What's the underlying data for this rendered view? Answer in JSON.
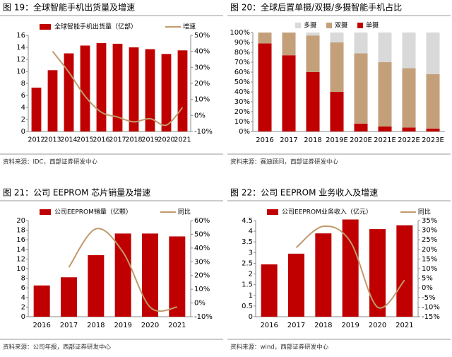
{
  "chart_data": [
    {
      "type": "combo",
      "title": "图 19：全球智能手机出货量及增速",
      "source": "资料来源：IDC，西部证券研发中心",
      "categories": [
        "2012",
        "2013",
        "2014",
        "2015",
        "2016",
        "2017",
        "2018",
        "2019",
        "2020",
        "2021"
      ],
      "series": [
        {
          "name": "全球智能手机出货量（亿部）",
          "type": "bar",
          "color": "#c00000",
          "values": [
            7.3,
            10.2,
            13.0,
            14.3,
            14.7,
            14.6,
            14.0,
            13.7,
            12.9,
            13.5
          ]
        },
        {
          "name": "增速",
          "type": "line",
          "axis": "y2",
          "color": "#c09a6b",
          "values": [
            null,
            40,
            27,
            12,
            2,
            -1,
            -4,
            -2,
            -6,
            5
          ]
        }
      ],
      "ylim": [
        0,
        16
      ],
      "yticks": [
        0,
        2,
        4,
        6,
        8,
        10,
        12,
        14,
        16
      ],
      "y2lim": [
        -10,
        50
      ],
      "y2ticks": [
        {
          "value": -10,
          "label": "-10%"
        },
        {
          "value": 0,
          "label": "0%"
        },
        {
          "value": 10,
          "label": "10%"
        },
        {
          "value": 20,
          "label": "20%"
        },
        {
          "value": 30,
          "label": "30%"
        },
        {
          "value": 40,
          "label": "40%"
        },
        {
          "value": 50,
          "label": "50%"
        }
      ]
    },
    {
      "type": "stacked_bar",
      "title": "图 20：全球后置单摄/双摄/多摄智能手机占比",
      "source": "资料来源：赛迪顾问，西部证券研发中心",
      "categories": [
        "2016",
        "2017",
        "2018",
        "2019E",
        "2020E",
        "2021E",
        "2022E",
        "2023E"
      ],
      "series": [
        {
          "name": "单摄",
          "color": "#c00000",
          "values": [
            89,
            77,
            60,
            40,
            8,
            5,
            4,
            3
          ]
        },
        {
          "name": "双摄",
          "color": "#c4a07a",
          "values": [
            11,
            23,
            37,
            50,
            71,
            65,
            60,
            55
          ]
        },
        {
          "name": "多摄",
          "color": "#d9d9d9",
          "values": [
            0,
            0,
            3,
            10,
            21,
            30,
            36,
            42
          ]
        }
      ],
      "ylim": [
        0,
        100
      ],
      "yticks": [
        {
          "value": 0,
          "label": "0%"
        },
        {
          "value": 10,
          "label": "10%"
        },
        {
          "value": 20,
          "label": "20%"
        },
        {
          "value": 30,
          "label": "30%"
        },
        {
          "value": 40,
          "label": "40%"
        },
        {
          "value": 50,
          "label": "50%"
        },
        {
          "value": 60,
          "label": "60%"
        },
        {
          "value": 70,
          "label": "70%"
        },
        {
          "value": 80,
          "label": "80%"
        },
        {
          "value": 90,
          "label": "90%"
        },
        {
          "value": 100,
          "label": "100%"
        }
      ]
    },
    {
      "type": "combo",
      "title": "图 21：公司 EEPROM 芯片销量及增速",
      "source": "资料来源：公司年报，西部证券研发中心",
      "categories": [
        "2016",
        "2017",
        "2018",
        "2019",
        "2020",
        "2021"
      ],
      "series": [
        {
          "name": "公司EEPROM销量（亿颗）",
          "type": "bar",
          "color": "#c00000",
          "values": [
            6.5,
            8.2,
            12.8,
            17.3,
            17.3,
            16.7
          ]
        },
        {
          "name": "同比",
          "type": "line",
          "axis": "y2",
          "color": "#c09a6b",
          "values": [
            null,
            26,
            54,
            37,
            -3,
            -3
          ]
        }
      ],
      "ylim": [
        0,
        20
      ],
      "yticks": [
        0,
        2,
        4,
        6,
        8,
        10,
        12,
        14,
        16,
        18,
        20
      ],
      "y2lim": [
        -10,
        60
      ],
      "y2ticks": [
        {
          "value": -10,
          "label": "-10%"
        },
        {
          "value": 0,
          "label": "0%"
        },
        {
          "value": 10,
          "label": "10%"
        },
        {
          "value": 20,
          "label": "20%"
        },
        {
          "value": 30,
          "label": "30%"
        },
        {
          "value": 40,
          "label": "40%"
        },
        {
          "value": 50,
          "label": "50%"
        },
        {
          "value": 60,
          "label": "60%"
        }
      ]
    },
    {
      "type": "combo",
      "title": "图 22：公司 EEPROM 业务收入及增速",
      "source": "资料来源：wind，西部证券研发中心",
      "categories": [
        "2016",
        "2017",
        "2018",
        "2019",
        "2020",
        "2021"
      ],
      "series": [
        {
          "name": "公司EEPROM业务收入（亿元）",
          "type": "bar",
          "color": "#c00000",
          "values": [
            2.45,
            2.95,
            3.9,
            4.55,
            4.1,
            4.28
          ]
        },
        {
          "name": "同比",
          "type": "line",
          "axis": "y2",
          "color": "#c09a6b",
          "values": [
            null,
            21,
            32,
            24,
            -10,
            4
          ]
        }
      ],
      "ylim": [
        0,
        4.5
      ],
      "yticks": [
        0,
        0.5,
        1,
        1.5,
        2,
        2.5,
        3,
        3.5,
        4,
        4.5
      ],
      "y2lim": [
        -15,
        35
      ],
      "y2ticks": [
        {
          "value": -15,
          "label": "-15%"
        },
        {
          "value": -10,
          "label": "-10%"
        },
        {
          "value": -5,
          "label": "-5%"
        },
        {
          "value": 0,
          "label": "0%"
        },
        {
          "value": 5,
          "label": "5%"
        },
        {
          "value": 10,
          "label": "10%"
        },
        {
          "value": 15,
          "label": "15%"
        },
        {
          "value": 20,
          "label": "20%"
        },
        {
          "value": 25,
          "label": "25%"
        },
        {
          "value": 30,
          "label": "30%"
        },
        {
          "value": 35,
          "label": "35%"
        }
      ]
    }
  ]
}
